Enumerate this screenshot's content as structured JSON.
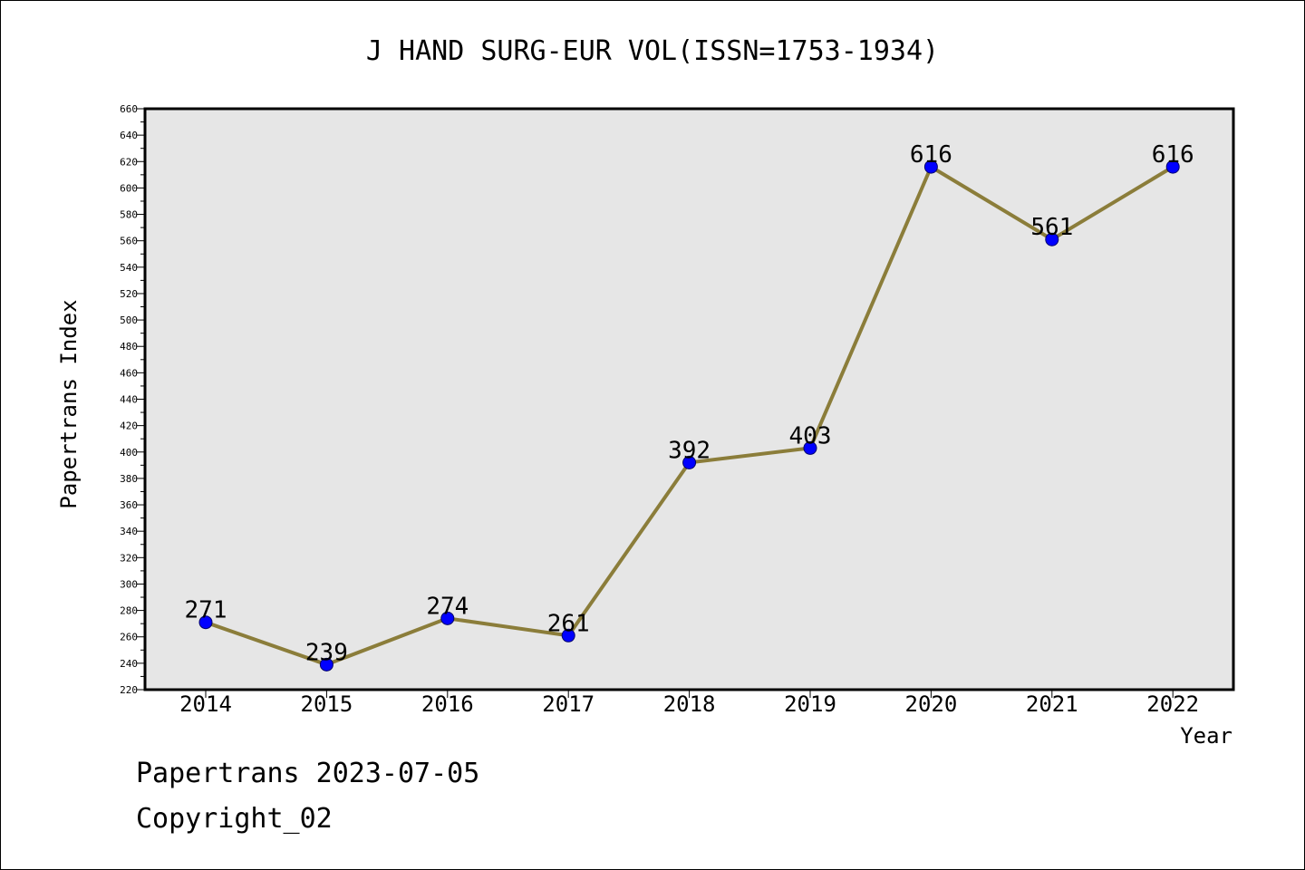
{
  "footer": {
    "line1": "Papertrans 2023-07-05",
    "line2": "Copyright_02"
  },
  "colors": {
    "plot_background": "#e6e6e6",
    "line": "#8b7d3a",
    "marker": "#0000ff",
    "marker_edge": "#00006b",
    "axis": "#000000"
  },
  "chart_data": {
    "type": "line",
    "title": "J HAND SURG-EUR VOL(ISSN=1753-1934)",
    "xlabel": "Year",
    "ylabel": "Papertrans Index",
    "categories": [
      "2014",
      "2015",
      "2016",
      "2017",
      "2018",
      "2019",
      "2020",
      "2021",
      "2022"
    ],
    "series": [
      {
        "values": [
          271,
          239,
          274,
          261,
          392,
          403,
          616,
          561,
          616
        ]
      }
    ],
    "data_labels": [
      "271",
      "239",
      "274",
      "261",
      "392",
      "403",
      "616",
      "561",
      "616"
    ],
    "ylim": [
      220,
      660
    ],
    "yticks": [
      220,
      240,
      260,
      280,
      300,
      320,
      340,
      360,
      380,
      400,
      420,
      440,
      460,
      480,
      500,
      520,
      540,
      560,
      580,
      600,
      620,
      640,
      660
    ],
    "grid": false,
    "legend": "none"
  }
}
